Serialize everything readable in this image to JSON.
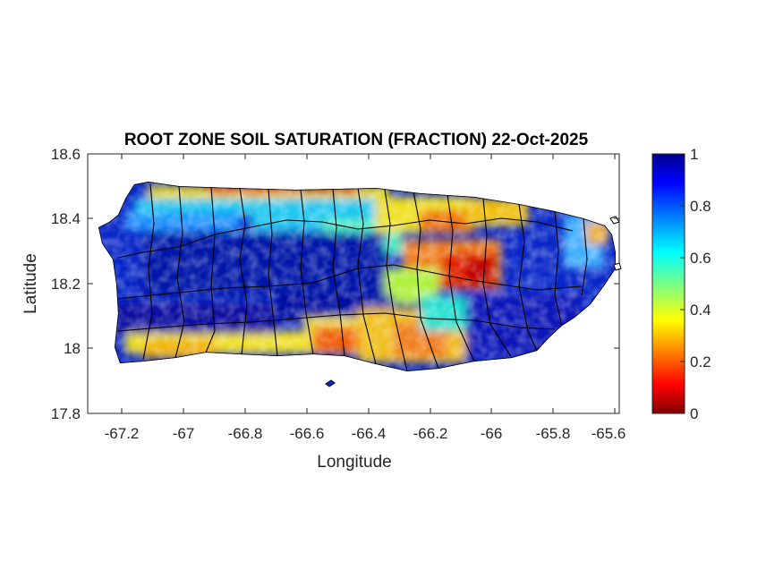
{
  "figure": {
    "title": "ROOT ZONE SOIL SATURATION (FRACTION) 22-Oct-2025",
    "xlabel": "Longitude",
    "ylabel": "Latitude"
  },
  "map": {
    "region": "Puerto Rico",
    "xlim": [
      -67.3,
      -65.58
    ],
    "ylim": [
      17.8,
      18.6
    ],
    "xticks": [
      "-67.2",
      "-67",
      "-66.8",
      "-66.6",
      "-66.4",
      "-66.2",
      "-66",
      "-65.8",
      "-65.6"
    ],
    "yticks": [
      "18.6",
      "18.4",
      "18.2",
      "18",
      "17.8"
    ],
    "background": "#ffffff",
    "municipality_border_color": "#000000",
    "field_description_colors": {
      "wet": "#00149e",
      "mid": "#16d7e6",
      "dry": "#a80000"
    }
  },
  "colorbar": {
    "colormap": "jet",
    "range": [
      0,
      1
    ],
    "ticks": [
      "0",
      "0.2",
      "0.4",
      "0.6",
      "0.8",
      "1"
    ],
    "placement": "right",
    "stops": [
      "#00008f",
      "#0000ff",
      "#0080ff",
      "#00ffff",
      "#80ff80",
      "#ffff00",
      "#ff8000",
      "#ff0000",
      "#800000"
    ]
  }
}
